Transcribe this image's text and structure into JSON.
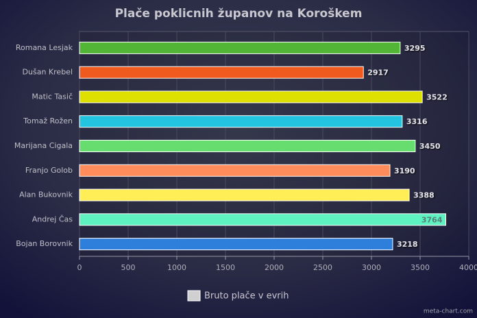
{
  "chart_data": {
    "type": "bar",
    "orientation": "horizontal",
    "title": "Plače poklicnih županov na Koroškem",
    "categories": [
      "Romana Lesjak",
      "Dušan Krebel",
      "Matic Tasič",
      "Tomaž Rožen",
      "Marijana Cigala",
      "Franjo Golob",
      "Alan Bukovnik",
      "Andrej Čas",
      "Bojan Borovnik"
    ],
    "series": [
      {
        "name": "Bruto plače v evrih",
        "color": "#d0d0d0",
        "values": [
          3295,
          2917,
          3522,
          3316,
          3450,
          3190,
          3388,
          3764,
          3218
        ]
      }
    ],
    "colors": [
      "#52b535",
      "#f05a1e",
      "#dde000",
      "#22c4e0",
      "#66dd6e",
      "#ff8c5a",
      "#ffee55",
      "#5ef2c0",
      "#2e7fdc"
    ],
    "xlim": [
      0,
      4000
    ],
    "xticks": [
      0,
      500,
      1000,
      1500,
      2000,
      2500,
      3000,
      3500,
      4000
    ],
    "grid": true,
    "legend": "bottom",
    "credit": "meta-chart.com"
  }
}
